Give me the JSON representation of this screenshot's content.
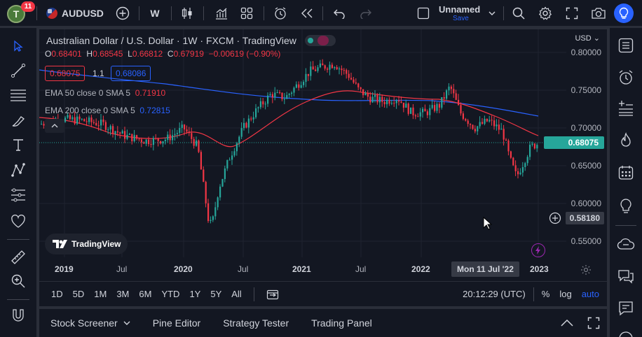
{
  "topbar": {
    "avatar_letter": "T",
    "notification_count": "11",
    "symbol": "AUDUSD",
    "interval": "W",
    "layout_name": "Unnamed",
    "layout_save": "Save"
  },
  "legend": {
    "title": "Australian Dollar / U.S. Dollar · 1W · FXCM · TradingView",
    "open_label": "O",
    "open": "0.68401",
    "high_label": "H",
    "high": "0.68545",
    "low_label": "L",
    "low": "0.66812",
    "close_label": "C",
    "close": "0.67919",
    "change": "−0.00619 (−0.90%)",
    "sell_price": "0.68075",
    "spread": "1.1",
    "buy_price": "0.68086",
    "ema50_label": "EMA 50 close 0 SMA 5",
    "ema50_value": "0.71910",
    "ema200_label": "EMA 200 close 0 SMA 5",
    "ema200_value": "0.72815"
  },
  "yaxis": {
    "currency": "USD",
    "ticks": [
      "0.80000",
      "0.75000",
      "0.70000",
      "0.65000",
      "0.60000",
      "0.55000"
    ],
    "current_price": "0.68075",
    "crosshair_price": "0.58180"
  },
  "xaxis": {
    "ticks": [
      {
        "label": "2019",
        "bold": true
      },
      {
        "label": "Jul",
        "bold": false
      },
      {
        "label": "2020",
        "bold": true
      },
      {
        "label": "Jul",
        "bold": false
      },
      {
        "label": "2021",
        "bold": true
      },
      {
        "label": "Jul",
        "bold": false
      },
      {
        "label": "2022",
        "bold": true
      },
      {
        "label": "2023",
        "bold": true
      }
    ],
    "crosshair_date": "Mon 11 Jul '22"
  },
  "watermark": "TradingView",
  "rangebar": {
    "ranges": [
      "1D",
      "5D",
      "1M",
      "3M",
      "6M",
      "YTD",
      "1Y",
      "5Y",
      "All"
    ],
    "time": "20:12:29 (UTC)",
    "percent": "%",
    "log": "log",
    "auto": "auto"
  },
  "bottombar": {
    "items": [
      "Stock Screener",
      "Pine Editor",
      "Strategy Tester",
      "Trading Panel"
    ]
  },
  "colors": {
    "up": "#26a69a",
    "down": "#f23645",
    "ema50": "#f23645",
    "ema200": "#2962ff",
    "accent": "#2962ff",
    "background": "#131722"
  }
}
